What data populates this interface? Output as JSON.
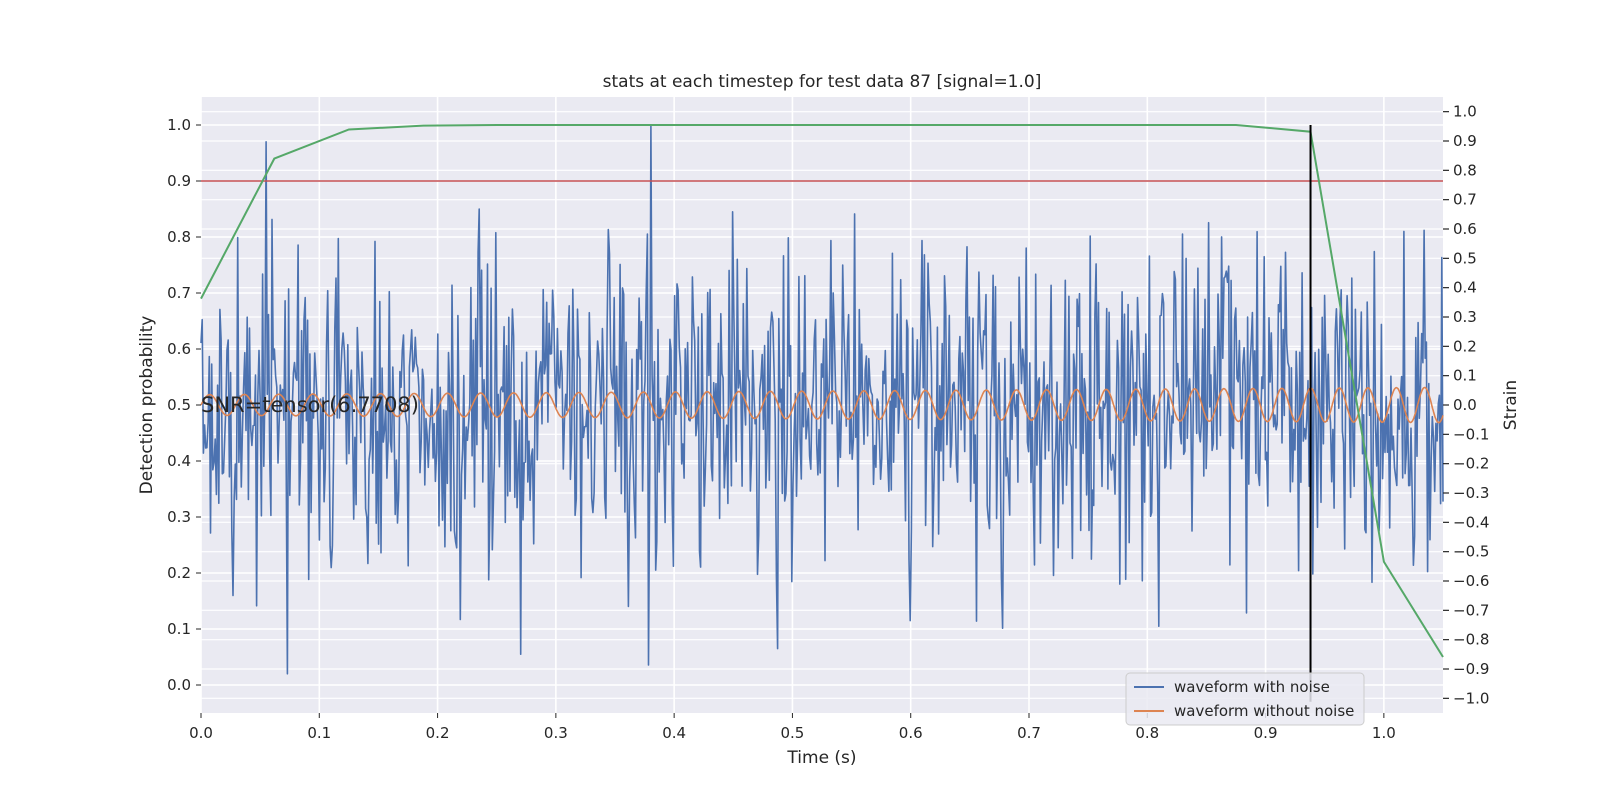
{
  "chart_data": {
    "type": "line",
    "title": "stats at each timestep for test data 87 [signal=1.0]",
    "xlabel": "Time (s)",
    "ylabel": "Detection probability",
    "y2label": "Strain",
    "xlim": [
      0.0,
      1.05
    ],
    "ylim": [
      -0.05,
      1.05
    ],
    "y2lim": [
      -1.05,
      1.05
    ],
    "xticks": [
      "0.0",
      "0.1",
      "0.2",
      "0.3",
      "0.4",
      "0.5",
      "0.6",
      "0.7",
      "0.8",
      "0.9",
      "1.0"
    ],
    "yticks": [
      "0.0",
      "0.1",
      "0.2",
      "0.3",
      "0.4",
      "0.5",
      "0.6",
      "0.7",
      "0.8",
      "0.9",
      "1.0"
    ],
    "y2ticks": [
      "−1.0",
      "−0.9",
      "−0.8",
      "−0.7",
      "−0.6",
      "−0.5",
      "−0.4",
      "−0.3",
      "−0.2",
      "−0.1",
      "0.0",
      "0.1",
      "0.2",
      "0.3",
      "0.4",
      "0.5",
      "0.6",
      "0.7",
      "0.8",
      "0.9",
      "1.0"
    ],
    "grid": true,
    "legend_position": "lower-right",
    "annotation": "SNR=tensor(6.7708)",
    "threshold": 0.9,
    "marker_x": 0.938,
    "colors": {
      "background": "#eaeaf2",
      "grid": "#ffffff",
      "noisy": "#4c72b0",
      "clean": "#dd8452",
      "probability": "#55a868",
      "threshold": "#c44e52",
      "marker": "#000000"
    },
    "probability_series": {
      "x": [
        0.0,
        0.062,
        0.125,
        0.188,
        0.25,
        0.312,
        0.375,
        0.438,
        0.5,
        0.562,
        0.625,
        0.688,
        0.75,
        0.812,
        0.875,
        0.938,
        1.0,
        1.05
      ],
      "y": [
        0.69,
        0.94,
        0.992,
        0.999,
        1.0,
        1.0,
        1.0,
        1.0,
        1.0,
        1.0,
        1.0,
        1.0,
        1.0,
        1.0,
        1.0,
        0.988,
        0.22,
        0.05
      ]
    },
    "clean_waveform": {
      "amplitude_start": 0.035,
      "amplitude_end": 0.06,
      "frequency_start_hz": 34,
      "frequency_end_hz": 42,
      "offset": 0.0
    },
    "noisy_waveform": {
      "n_samples": 1050,
      "sigma": 0.27,
      "spikes": [
        {
          "x": 0.055,
          "y": 0.97
        },
        {
          "x": 0.073,
          "y": 0.02
        },
        {
          "x": 0.38,
          "y": 1.0
        },
        {
          "x": 0.27,
          "y": 0.055
        },
        {
          "x": 0.487,
          "y": 0.065
        },
        {
          "x": 0.235,
          "y": 0.85
        },
        {
          "x": 0.81,
          "y": 0.105
        },
        {
          "x": 0.6,
          "y": 0.115
        }
      ]
    },
    "series": [
      {
        "name": "waveform with noise"
      },
      {
        "name": "waveform without noise"
      }
    ]
  }
}
